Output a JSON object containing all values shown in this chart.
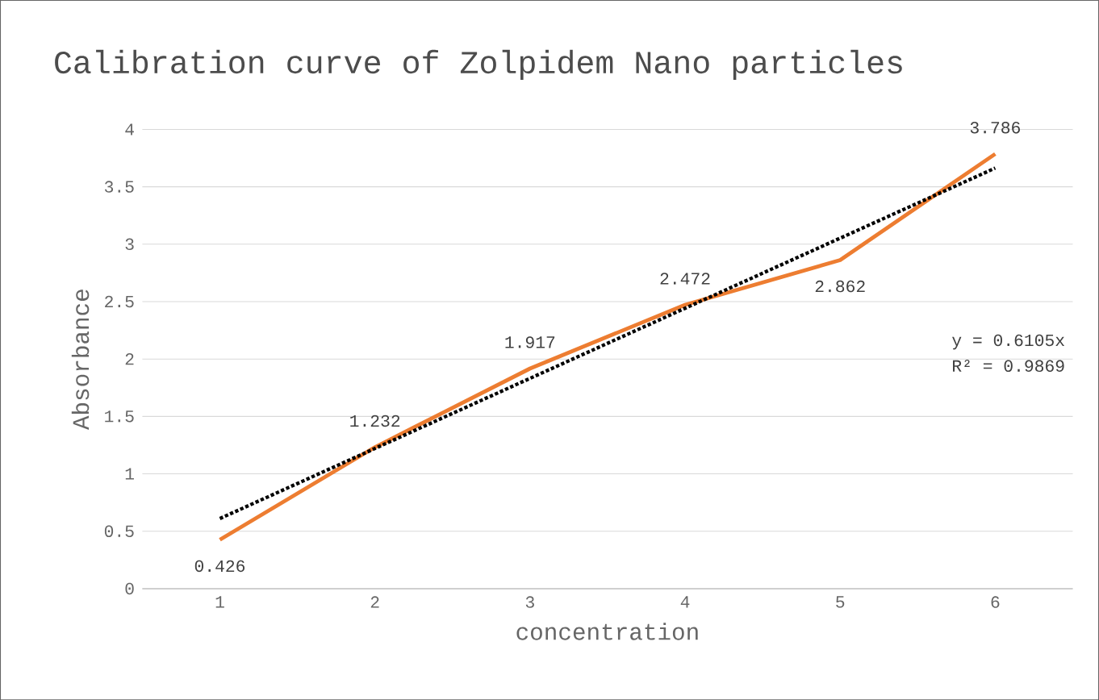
{
  "chart_data": {
    "type": "line",
    "title": "Calibration curve of Zolpidem Nano particles",
    "xlabel": "concentration",
    "ylabel": "Absorbance",
    "categories": [
      "1",
      "2",
      "3",
      "4",
      "5",
      "6"
    ],
    "series": [
      {
        "color": "#ed7d31",
        "values": [
          0.426,
          1.232,
          1.917,
          2.472,
          2.862,
          3.786
        ],
        "value_labels": [
          "0.426",
          "1.232",
          "1.917",
          "2.472",
          "2.862",
          "3.786"
        ],
        "line_style": "solid"
      },
      {
        "color": "#000000",
        "values": [
          0.6105,
          1.221,
          1.8315,
          2.442,
          3.0525,
          3.663
        ],
        "line_style": "dotted"
      }
    ],
    "annotations": [
      "y = 0.6105x",
      "R² = 0.9869"
    ],
    "ylim": [
      0,
      4
    ],
    "yticks": [
      0,
      0.5,
      1,
      1.5,
      2,
      2.5,
      3,
      3.5,
      4
    ],
    "grid": "y",
    "marker": "none"
  }
}
